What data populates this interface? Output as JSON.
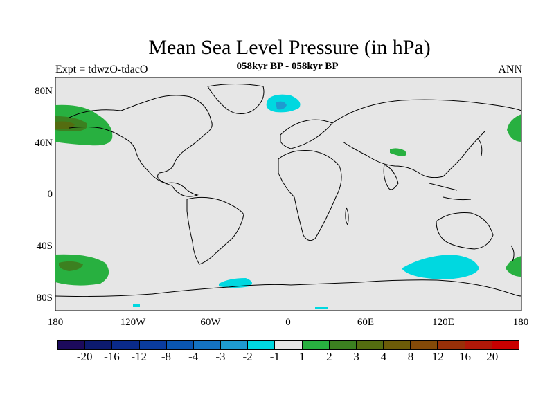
{
  "title": "Mean Sea Level Pressure (in hPa)",
  "experiment": "Expt = tdwzO-tdacO",
  "subtitle": "058kyr BP - 058kyr BP",
  "season": "ANN",
  "lat_labels": [
    "80N",
    "40N",
    "0",
    "40S",
    "80S"
  ],
  "lon_labels": [
    "180",
    "120W",
    "60W",
    "0",
    "60E",
    "120E",
    "180"
  ],
  "colorbar": {
    "colors": [
      "#1c0a5c",
      "#0c1a6e",
      "#0a2a8a",
      "#0a3c9e",
      "#0a56b0",
      "#1473c0",
      "#1e9bd0",
      "#00d8e0",
      "#e6e6e6",
      "#28b040",
      "#3c8020",
      "#546c10",
      "#6c5c08",
      "#844a08",
      "#983008",
      "#b01808",
      "#c80000"
    ],
    "labels": [
      "-20",
      "-16",
      "-12",
      "-8",
      "-4",
      "-3",
      "-2",
      "-1",
      "1",
      "2",
      "3",
      "4",
      "8",
      "12",
      "16",
      "20"
    ]
  },
  "colors": {
    "background": "#e6e6e6",
    "positive_light": "#28b040",
    "positive_mid": "#3c8020",
    "positive_dark": "#546c10",
    "negative_light": "#00d8e0",
    "negative_mid": "#1e9bd0"
  }
}
